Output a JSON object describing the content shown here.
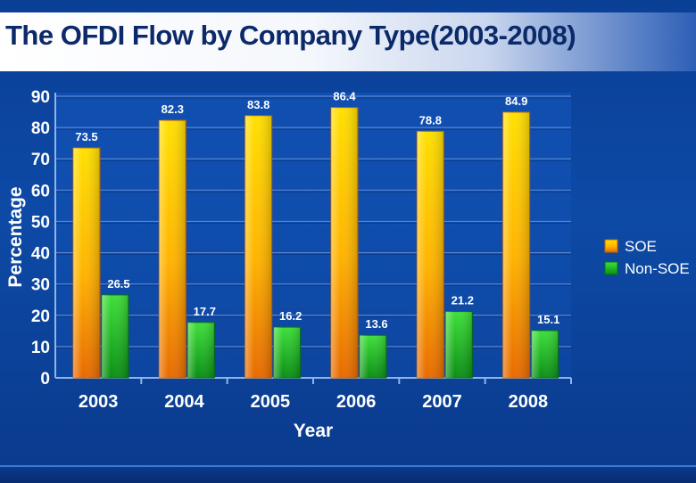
{
  "chart_data": {
    "type": "bar",
    "title": "The OFDI Flow by Company Type(2003-2008)",
    "xlabel": "Year",
    "ylabel": "Percentage",
    "categories": [
      "2003",
      "2004",
      "2005",
      "2006",
      "2007",
      "2008"
    ],
    "series": [
      {
        "name": "SOE",
        "values": [
          73.5,
          82.3,
          83.8,
          86.4,
          78.8,
          84.9
        ],
        "color": "#f5a800"
      },
      {
        "name": "Non-SOE",
        "values": [
          26.5,
          17.7,
          16.2,
          13.6,
          21.2,
          15.1
        ],
        "color": "#16b41c"
      }
    ],
    "ylim": [
      0,
      90
    ],
    "yticks": [
      0,
      10,
      20,
      30,
      40,
      50,
      60,
      70,
      80,
      90
    ],
    "grid": true,
    "legend_position": "right"
  }
}
